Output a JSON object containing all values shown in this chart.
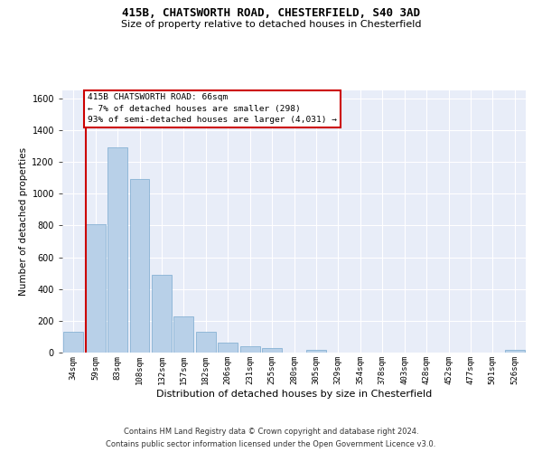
{
  "title_line1": "415B, CHATSWORTH ROAD, CHESTERFIELD, S40 3AD",
  "title_line2": "Size of property relative to detached houses in Chesterfield",
  "xlabel": "Distribution of detached houses by size in Chesterfield",
  "ylabel": "Number of detached properties",
  "footer_line1": "Contains HM Land Registry data © Crown copyright and database right 2024.",
  "footer_line2": "Contains public sector information licensed under the Open Government Licence v3.0.",
  "annotation_title": "415B CHATSWORTH ROAD: 66sqm",
  "annotation_line1": "← 7% of detached houses are smaller (298)",
  "annotation_line2": "93% of semi-detached houses are larger (4,031) →",
  "bin_labels": [
    "34sqm",
    "59sqm",
    "83sqm",
    "108sqm",
    "132sqm",
    "157sqm",
    "182sqm",
    "206sqm",
    "231sqm",
    "255sqm",
    "280sqm",
    "305sqm",
    "329sqm",
    "354sqm",
    "378sqm",
    "403sqm",
    "428sqm",
    "452sqm",
    "477sqm",
    "501sqm",
    "526sqm"
  ],
  "bar_values": [
    130,
    810,
    1290,
    1090,
    490,
    230,
    130,
    65,
    40,
    27,
    0,
    18,
    0,
    0,
    0,
    0,
    0,
    0,
    0,
    0,
    18
  ],
  "bar_color": "#b8d0e8",
  "bar_edge_color": "#7aaacf",
  "vline_color": "#cc0000",
  "vline_position": 1,
  "annotation_box_edgecolor": "#cc0000",
  "background_color": "#e8edf8",
  "ylim": [
    0,
    1650
  ],
  "yticks": [
    0,
    200,
    400,
    600,
    800,
    1000,
    1200,
    1400,
    1600
  ]
}
